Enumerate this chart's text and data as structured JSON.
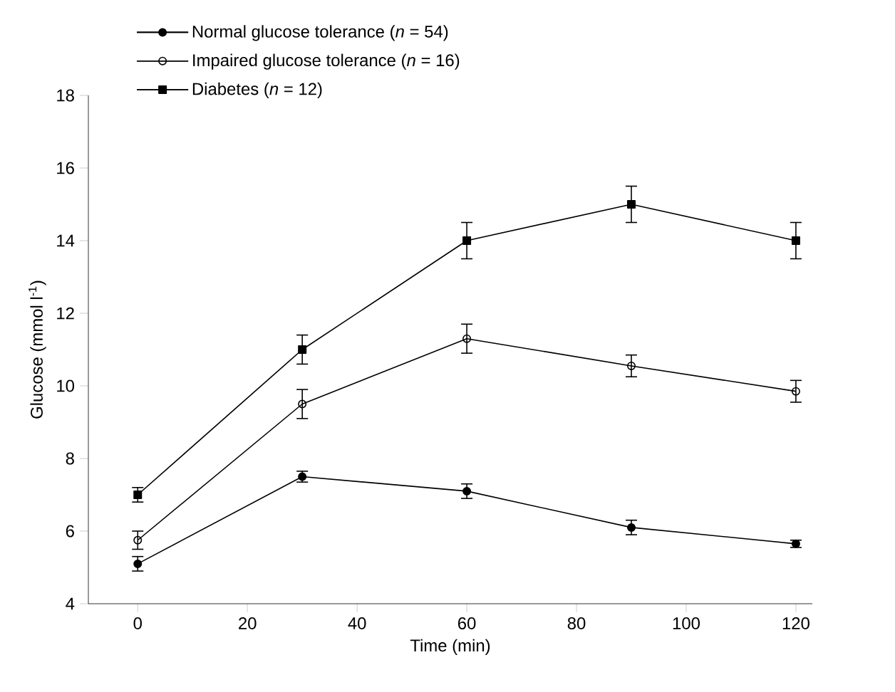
{
  "chart_data": {
    "type": "line",
    "xlabel": "Time (min)",
    "ylabel": "Glucose (mmol l$^{-1}$)",
    "x": [
      0,
      30,
      60,
      90,
      120
    ],
    "series": [
      {
        "name": "Normal glucose tolerance (*n* = 54)",
        "color": "#000000",
        "marker": "circle",
        "values": [
          5.1,
          7.5,
          7.1,
          6.1,
          5.65
        ],
        "errors": [
          0.2,
          0.15,
          0.2,
          0.2,
          0.1
        ]
      },
      {
        "name": "Impaired glucose tolerance (*n* = 16)",
        "color": "#000000",
        "marker": "circle open",
        "values": [
          5.75,
          9.5,
          11.3,
          10.55,
          9.85
        ],
        "errors": [
          0.25,
          0.4,
          0.4,
          0.3,
          0.3
        ]
      },
      {
        "name": "Diabetes (*n* = 12)",
        "color": "#000000",
        "marker": "square",
        "values": [
          7.0,
          11.0,
          14.0,
          15.0,
          14.0
        ],
        "errors": [
          0.2,
          0.4,
          0.5,
          0.5,
          0.5
        ]
      }
    ],
    "xlim": [
      -9,
      123
    ],
    "ylim": [
      4,
      18
    ],
    "xticks": [
      0,
      20,
      40,
      60,
      80,
      100,
      120
    ],
    "yticks": [
      4,
      6,
      8,
      10,
      12,
      14,
      16,
      18
    ],
    "grid": false,
    "legend": "top left",
    "line_style": "solid"
  }
}
